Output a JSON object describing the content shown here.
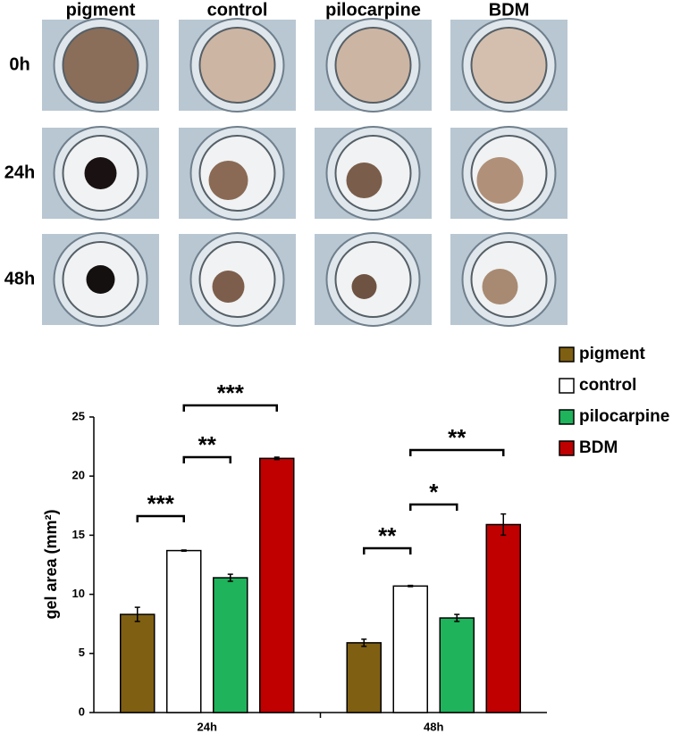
{
  "photos": {
    "columns": [
      "pigment",
      "control",
      "pilocarpine",
      "BDM"
    ],
    "rows": [
      "0h",
      "24h",
      "48h"
    ]
  },
  "chart_data": {
    "type": "bar",
    "ylabel": "gel area (mm²)",
    "categories": [
      "24h",
      "48h"
    ],
    "ylim": [
      0,
      25
    ],
    "yticks": [
      0,
      5,
      10,
      15,
      20,
      25
    ],
    "legend": "top-right",
    "series": [
      {
        "name": "pigment",
        "color": "#7f5f12",
        "values": [
          8.3,
          5.9
        ],
        "errors": [
          0.6,
          0.3
        ]
      },
      {
        "name": "control",
        "color": "#ffffff",
        "values": [
          13.7,
          10.7
        ],
        "errors": [
          0.05,
          0.05
        ]
      },
      {
        "name": "pilocarpine",
        "color": "#1fb35c",
        "values": [
          11.4,
          8.0
        ],
        "errors": [
          0.3,
          0.3
        ]
      },
      {
        "name": "BDM",
        "color": "#c00000",
        "values": [
          21.5,
          15.9
        ],
        "errors": [
          0.1,
          0.9
        ]
      }
    ],
    "annotations": [
      {
        "group": 0,
        "from": 0,
        "to": 1,
        "label": "***"
      },
      {
        "group": 0,
        "from": 1,
        "to": 2,
        "label": "**"
      },
      {
        "group": 0,
        "from": 1,
        "to": 3,
        "label": "***"
      },
      {
        "group": 1,
        "from": 0,
        "to": 1,
        "label": "**"
      },
      {
        "group": 1,
        "from": 1,
        "to": 2,
        "label": "*"
      },
      {
        "group": 1,
        "from": 1,
        "to": 3,
        "label": "**"
      }
    ]
  }
}
